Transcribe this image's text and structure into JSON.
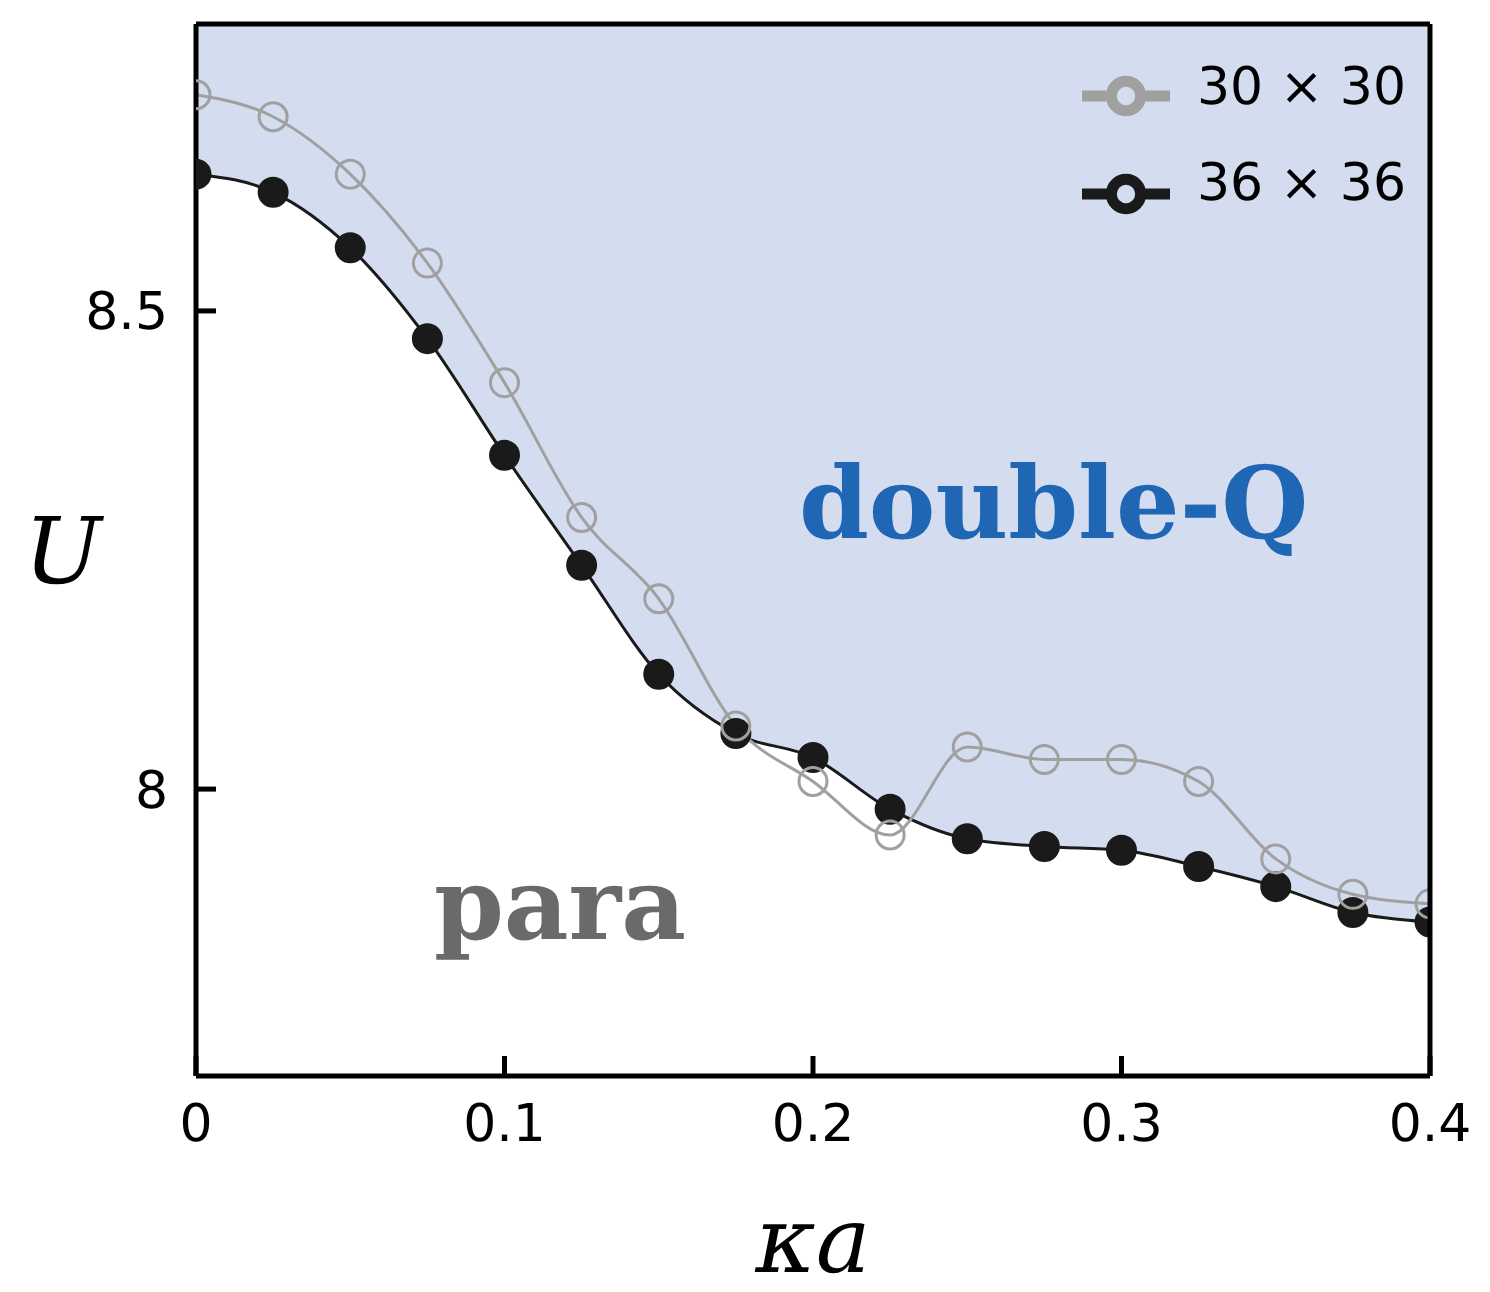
{
  "chart_data": {
    "type": "line",
    "xlabel": "κa",
    "ylabel": "U",
    "x": [
      0,
      0.025,
      0.05,
      0.075,
      0.1,
      0.125,
      0.15,
      0.175,
      0.2,
      0.225,
      0.25,
      0.275,
      0.3,
      0.325,
      0.35,
      0.375,
      0.4
    ],
    "series": [
      {
        "name": "30 × 30",
        "color": "#a0a0a0",
        "marker": "circle",
        "values": [
          8.726,
          8.703,
          8.643,
          8.55,
          8.425,
          8.284,
          8.199,
          8.066,
          8.008,
          7.952,
          8.044,
          8.031,
          8.031,
          8.008,
          7.927,
          7.89,
          7.88
        ]
      },
      {
        "name": "36 × 36",
        "color": "#1a1a1a",
        "marker": "circle",
        "values": [
          8.643,
          8.624,
          8.566,
          8.471,
          8.349,
          8.234,
          8.12,
          8.058,
          8.033,
          7.979,
          7.948,
          7.94,
          7.936,
          7.919,
          7.898,
          7.871,
          7.861
        ],
        "lower": [
          8.643,
          8.624,
          8.566,
          8.471,
          8.349,
          8.234,
          8.12,
          8.058,
          8.033,
          7.979,
          7.948,
          7.94,
          7.936,
          7.919,
          7.898,
          7.871,
          7.861
        ],
        "upper": [
          8.8,
          8.8,
          8.8,
          8.8,
          8.8,
          8.8,
          8.8,
          8.8,
          8.8,
          8.8,
          8.8,
          8.8,
          8.8,
          8.8,
          8.8,
          8.8,
          8.8
        ]
      }
    ],
    "xlim": [
      0,
      0.4
    ],
    "xticks": [
      0,
      0.1,
      0.2,
      0.3,
      0.4
    ],
    "ylim": [
      7.7,
      8.8
    ],
    "yticks": [
      8,
      8.5
    ],
    "annotations": [
      "double-Q",
      "para"
    ],
    "grid": false,
    "legend": "top right"
  }
}
